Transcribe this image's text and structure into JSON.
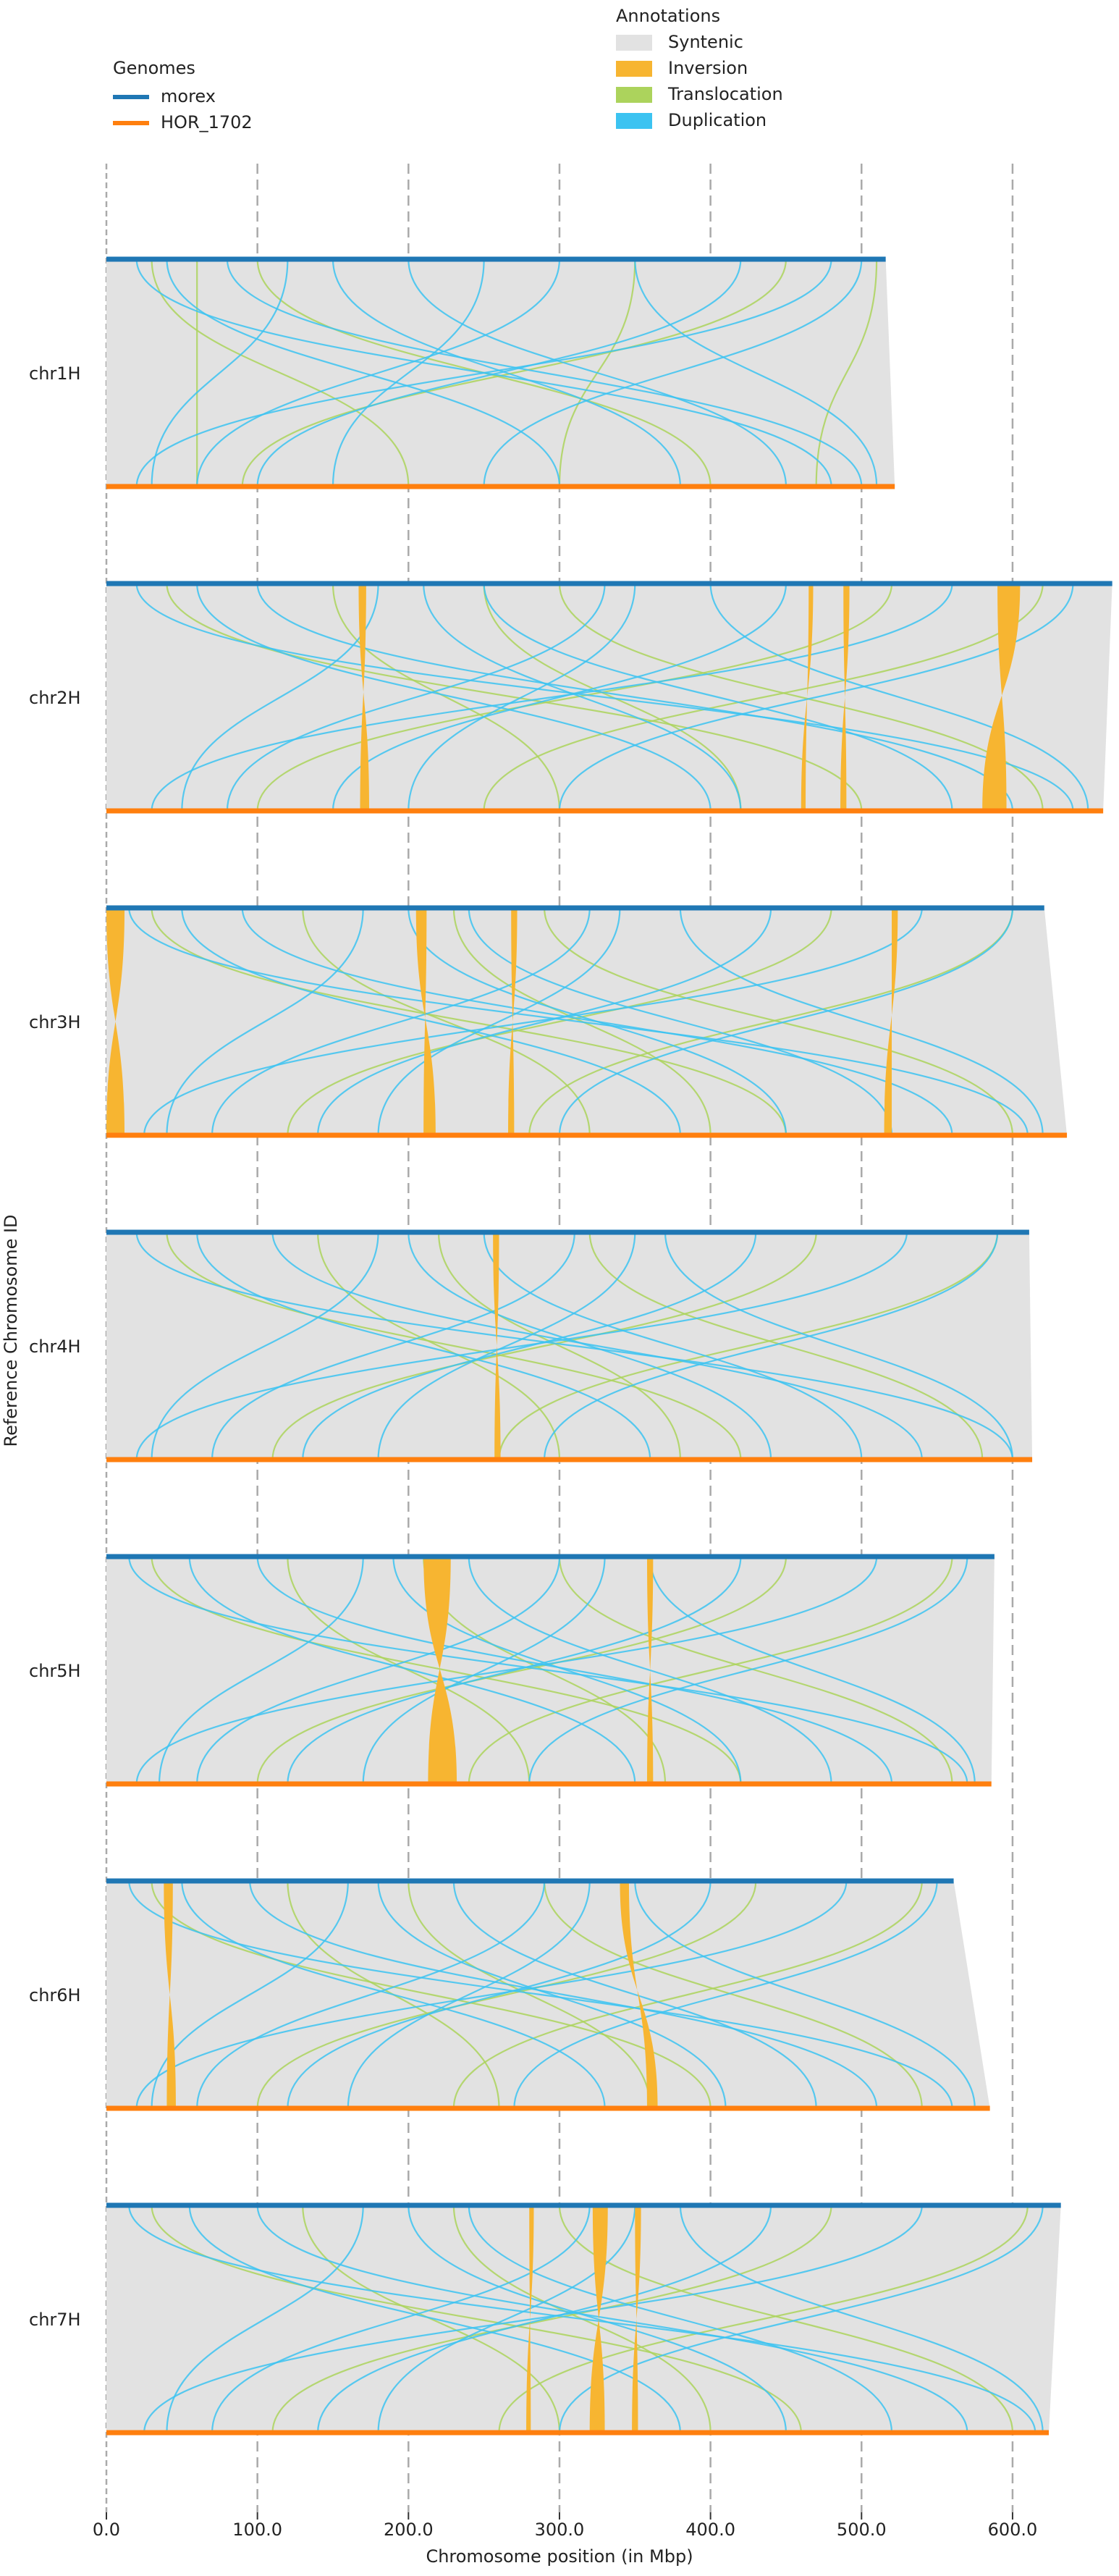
{
  "chart_data": {
    "type": "synteny",
    "xlabel": "Chromosome position (in Mbp)",
    "ylabel": "Reference Chromosome ID",
    "xlim": [
      0,
      670
    ],
    "xticks": [
      {
        "value": 0,
        "label": "0.0"
      },
      {
        "value": 100,
        "label": "100.0"
      },
      {
        "value": 200,
        "label": "200.0"
      },
      {
        "value": 300,
        "label": "300.0"
      },
      {
        "value": 400,
        "label": "400.0"
      },
      {
        "value": 500,
        "label": "500.0"
      },
      {
        "value": 600,
        "label": "600.0"
      }
    ],
    "grid": true,
    "genomes_title": "Genomes",
    "genomes": [
      {
        "name": "morex",
        "color": "#1f77b4"
      },
      {
        "name": "HOR_1702",
        "color": "#ff7f0e"
      }
    ],
    "annotations_title": "Annotations",
    "annotations": [
      {
        "name": "Syntenic",
        "color": "#e2e2e2"
      },
      {
        "name": "Inversion",
        "color": "#f7b531"
      },
      {
        "name": "Translocation",
        "color": "#acd35c"
      },
      {
        "name": "Duplication",
        "color": "#3cc3f1"
      }
    ],
    "chromosomes": [
      {
        "name": "chr1H",
        "ref_length": 516,
        "query_length": 522,
        "inversions": [],
        "translocations": [
          [
            30,
            200
          ],
          [
            100,
            400
          ],
          [
            350,
            300
          ],
          [
            450,
            90
          ],
          [
            60,
            60
          ],
          [
            510,
            470
          ]
        ],
        "duplications": [
          [
            20,
            480
          ],
          [
            40,
            300
          ],
          [
            80,
            500
          ],
          [
            120,
            30
          ],
          [
            200,
            450
          ],
          [
            300,
            60
          ],
          [
            350,
            510
          ],
          [
            420,
            100
          ],
          [
            480,
            20
          ],
          [
            500,
            250
          ],
          [
            150,
            380
          ],
          [
            250,
            150
          ]
        ]
      },
      {
        "name": "chr2H",
        "ref_length": 666,
        "query_length": 660,
        "inversions": [
          [
            167,
            172,
            168,
            174
          ],
          [
            590,
            605,
            580,
            596
          ],
          [
            488,
            492,
            486,
            490
          ],
          [
            465,
            468,
            460,
            463
          ]
        ],
        "translocations": [
          [
            40,
            500
          ],
          [
            150,
            300
          ],
          [
            300,
            620
          ],
          [
            520,
            100
          ],
          [
            620,
            250
          ],
          [
            250,
            420
          ]
        ],
        "duplications": [
          [
            20,
            640
          ],
          [
            60,
            400
          ],
          [
            100,
            600
          ],
          [
            180,
            50
          ],
          [
            250,
            560
          ],
          [
            330,
            80
          ],
          [
            400,
            650
          ],
          [
            450,
            150
          ],
          [
            560,
            30
          ],
          [
            640,
            300
          ],
          [
            210,
            420
          ],
          [
            350,
            200
          ]
        ]
      },
      {
        "name": "chr3H",
        "ref_length": 621,
        "query_length": 636,
        "inversions": [
          [
            0,
            12,
            0,
            12
          ],
          [
            205,
            212,
            210,
            218
          ],
          [
            268,
            272,
            266,
            270
          ],
          [
            520,
            524,
            515,
            520
          ]
        ],
        "translocations": [
          [
            30,
            450
          ],
          [
            130,
            320
          ],
          [
            290,
            600
          ],
          [
            480,
            120
          ],
          [
            600,
            280
          ],
          [
            230,
            400
          ]
        ],
        "duplications": [
          [
            15,
            610
          ],
          [
            50,
            380
          ],
          [
            90,
            560
          ],
          [
            170,
            40
          ],
          [
            240,
            520
          ],
          [
            320,
            70
          ],
          [
            380,
            620
          ],
          [
            440,
            140
          ],
          [
            540,
            25
          ],
          [
            600,
            300
          ],
          [
            200,
            450
          ],
          [
            340,
            180
          ]
        ]
      },
      {
        "name": "chr4H",
        "ref_length": 611,
        "query_length": 613,
        "inversions": [
          [
            256,
            260,
            257,
            261
          ]
        ],
        "translocations": [
          [
            40,
            420
          ],
          [
            140,
            300
          ],
          [
            320,
            580
          ],
          [
            470,
            110
          ],
          [
            590,
            260
          ],
          [
            220,
            380
          ]
        ],
        "duplications": [
          [
            20,
            600
          ],
          [
            60,
            360
          ],
          [
            110,
            540
          ],
          [
            180,
            30
          ],
          [
            250,
            500
          ],
          [
            310,
            70
          ],
          [
            370,
            600
          ],
          [
            430,
            130
          ],
          [
            530,
            20
          ],
          [
            590,
            290
          ],
          [
            200,
            440
          ],
          [
            350,
            180
          ]
        ]
      },
      {
        "name": "chr5H",
        "ref_length": 588,
        "query_length": 586,
        "inversions": [
          [
            210,
            228,
            213,
            232
          ],
          [
            358,
            362,
            358,
            362
          ]
        ],
        "translocations": [
          [
            30,
            420
          ],
          [
            120,
            280
          ],
          [
            300,
            560
          ],
          [
            450,
            100
          ],
          [
            560,
            240
          ],
          [
            210,
            370
          ]
        ],
        "duplications": [
          [
            15,
            570
          ],
          [
            55,
            350
          ],
          [
            100,
            520
          ],
          [
            170,
            35
          ],
          [
            240,
            480
          ],
          [
            300,
            60
          ],
          [
            360,
            575
          ],
          [
            420,
            120
          ],
          [
            510,
            20
          ],
          [
            570,
            280
          ],
          [
            190,
            420
          ],
          [
            330,
            170
          ]
        ]
      },
      {
        "name": "chr6H",
        "ref_length": 561,
        "query_length": 585,
        "inversions": [
          [
            38,
            44,
            40,
            46
          ],
          [
            340,
            346,
            358,
            365
          ]
        ],
        "translocations": [
          [
            30,
            400
          ],
          [
            120,
            260
          ],
          [
            290,
            540
          ],
          [
            430,
            100
          ],
          [
            540,
            230
          ],
          [
            200,
            360
          ]
        ],
        "duplications": [
          [
            15,
            560
          ],
          [
            50,
            330
          ],
          [
            95,
            510
          ],
          [
            160,
            30
          ],
          [
            230,
            470
          ],
          [
            290,
            60
          ],
          [
            350,
            575
          ],
          [
            400,
            120
          ],
          [
            490,
            20
          ],
          [
            550,
            270
          ],
          [
            180,
            410
          ],
          [
            320,
            160
          ]
        ]
      },
      {
        "name": "chr7H",
        "ref_length": 632,
        "query_length": 624,
        "inversions": [
          [
            322,
            332,
            320,
            330
          ],
          [
            350,
            354,
            348,
            352
          ],
          [
            280,
            283,
            278,
            281
          ]
        ],
        "translocations": [
          [
            30,
            460
          ],
          [
            130,
            300
          ],
          [
            300,
            600
          ],
          [
            480,
            110
          ],
          [
            610,
            260
          ],
          [
            230,
            400
          ]
        ],
        "duplications": [
          [
            15,
            615
          ],
          [
            55,
            380
          ],
          [
            100,
            570
          ],
          [
            170,
            40
          ],
          [
            240,
            520
          ],
          [
            320,
            70
          ],
          [
            380,
            620
          ],
          [
            440,
            140
          ],
          [
            540,
            25
          ],
          [
            620,
            300
          ],
          [
            200,
            450
          ],
          [
            350,
            180
          ]
        ]
      }
    ]
  }
}
